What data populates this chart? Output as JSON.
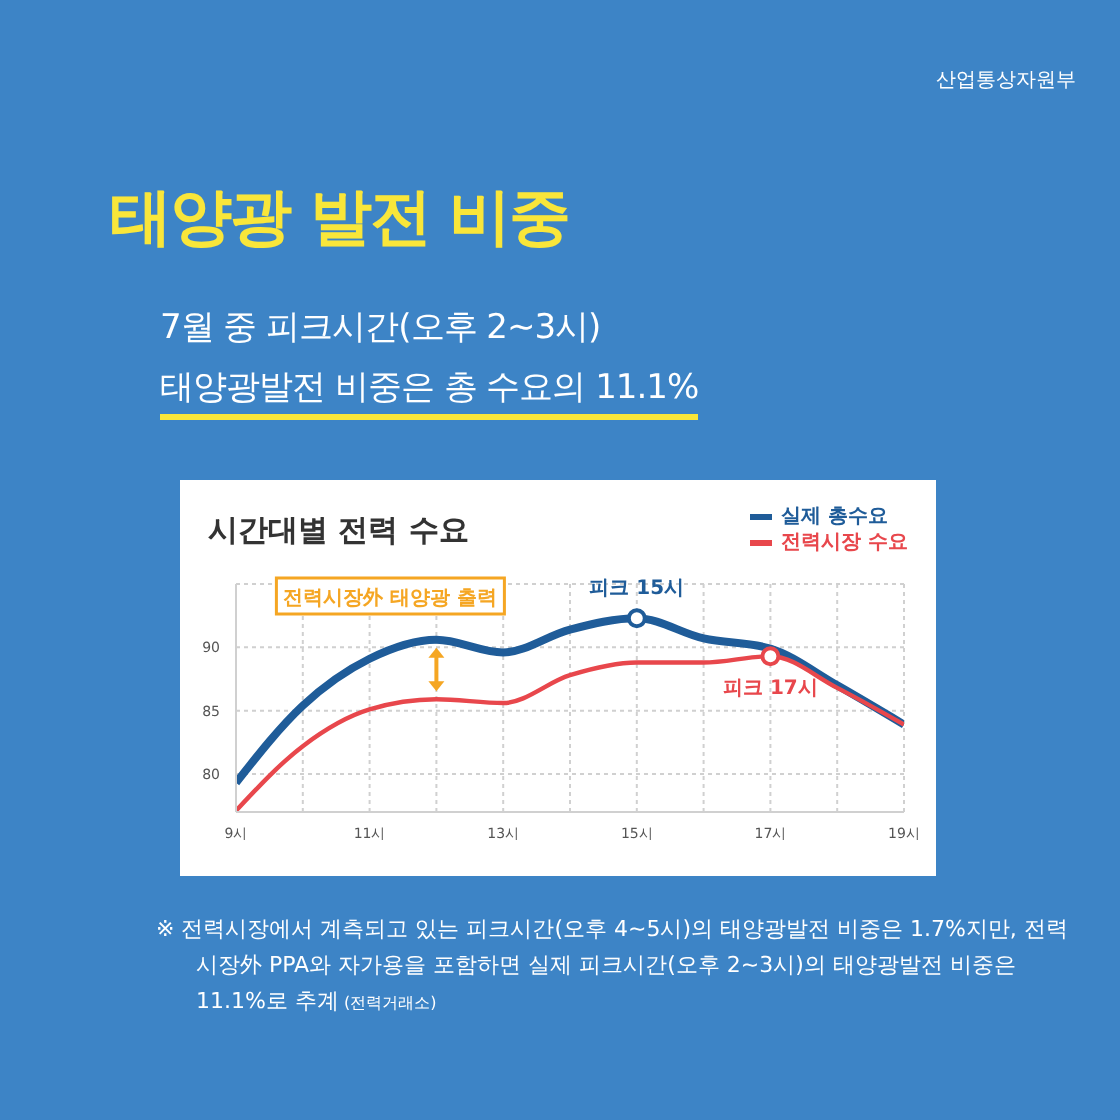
{
  "chart_data": {
    "type": "line",
    "title": "태양광 발전 비중",
    "subtitle": "7월 중 피크시간(오후 2~3시)\n태양광발전 비중은 총 수요의 11.1%",
    "annotations": [
      "산업통상자원부",
      "시간대별 전력 수요",
      "※ 전력시장에서 계측되고 있는 피크시간(오후 4~5시)의 태양광발전 비중은 1.7%지만, 전력시장外 PPA와 자가용을 포함하면 실제 피크시간(오후 2~3시)의 태양광발전 비중은 11.1%로 추계",
      "(전력거래소)",
      {
        "text": "전력시장外 태양광 출력",
        "x": 12,
        "y": 90.6
      },
      {
        "text": "피크 15시",
        "x": 15,
        "y": 92.3
      },
      {
        "text": "피크 17시",
        "x": 17,
        "y": 89.3
      }
    ],
    "x": [
      9,
      10,
      11,
      12,
      13,
      14,
      15,
      16,
      17,
      18,
      19
    ],
    "series": [
      {
        "name": "실제 총수요",
        "color": "#1f5c99",
        "values": [
          79.3,
          85.4,
          89.1,
          90.6,
          89.6,
          91.4,
          92.3,
          90.7,
          89.9,
          87.0,
          83.9
        ]
      },
      {
        "name": "전력시장 수요",
        "color": "#e8474c",
        "values": [
          77.1,
          82.2,
          85.1,
          85.9,
          85.6,
          87.8,
          88.8,
          88.8,
          89.3,
          86.8,
          83.9
        ]
      }
    ],
    "xlim": [
      9,
      19
    ],
    "xticks": [
      {
        "value": 9,
        "label": "9시"
      },
      {
        "value": 10,
        "label": null
      },
      {
        "value": 11,
        "label": "11시"
      },
      {
        "value": 12,
        "label": null
      },
      {
        "value": 13,
        "label": "13시"
      },
      {
        "value": 14,
        "label": null
      },
      {
        "value": 15,
        "label": "15시"
      },
      {
        "value": 16,
        "label": null
      },
      {
        "value": 17,
        "label": "17시"
      },
      {
        "value": 18,
        "label": null
      },
      {
        "value": 19,
        "label": "19시"
      }
    ],
    "ylim": [
      77,
      95
    ],
    "yticks": [
      80,
      85,
      90
    ],
    "grid": true,
    "legend": "top right",
    "marker": "none",
    "line_style": "solid"
  }
}
